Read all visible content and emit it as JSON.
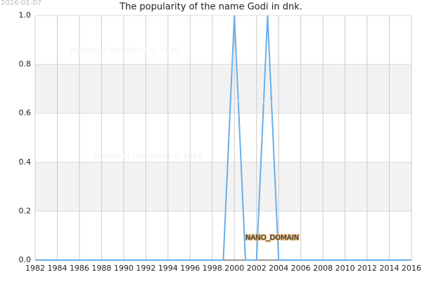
{
  "date_stamp": "2026-01-07",
  "watermarks": [
    "Names of the World © 2026",
    "Names of the World © 2026",
    "Names of the World © 2026"
  ],
  "domain_stamp": "NANO_DOMAIN",
  "chart_data": {
    "type": "line",
    "title": "The popularity of the name Godi in dnk.",
    "x": [
      1982,
      1983,
      1984,
      1985,
      1986,
      1987,
      1988,
      1989,
      1990,
      1991,
      1992,
      1993,
      1994,
      1995,
      1996,
      1997,
      1998,
      1999,
      2000,
      2001,
      2002,
      2003,
      2004,
      2005,
      2006,
      2007,
      2008,
      2009,
      2010,
      2011,
      2012,
      2013,
      2014,
      2015,
      2016
    ],
    "series": [
      {
        "color": "#6aaee8",
        "values": [
          0,
          0,
          0,
          0,
          0,
          0,
          0,
          0,
          0,
          0,
          0,
          0,
          0,
          0,
          0,
          0,
          0,
          0,
          1,
          0,
          0,
          1,
          0,
          0,
          0,
          0,
          0,
          0,
          0,
          0,
          0,
          0,
          0,
          0,
          0
        ]
      }
    ],
    "xlim": [
      1982,
      2016
    ],
    "xticks": [
      1982,
      1984,
      1986,
      1988,
      1990,
      1992,
      1994,
      1996,
      1998,
      2000,
      2002,
      2004,
      2006,
      2008,
      2010,
      2012,
      2014,
      2016
    ],
    "ylim": [
      0,
      1
    ],
    "yticks": [
      {
        "value": 0,
        "label": "0.0"
      },
      0.2,
      0.4,
      0.6,
      0.8,
      {
        "value": 1,
        "label": "1.0"
      }
    ],
    "grid": true
  }
}
